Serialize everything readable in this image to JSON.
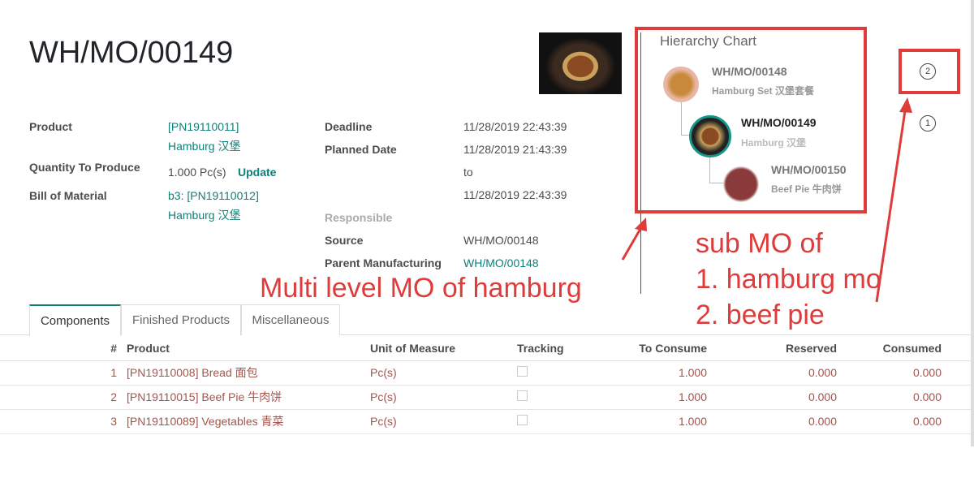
{
  "record": {
    "title": "WH/MO/00149"
  },
  "fields": {
    "product_label": "Product",
    "product_code": "[PN19110011]",
    "product_name": "Hamburg 汉堡",
    "qty_label": "Quantity To Produce",
    "qty_value": "1.000 Pc(s)",
    "update_label": "Update",
    "bom_label": "Bill of Material",
    "bom_code": "b3: [PN19110012]",
    "bom_name": "Hamburg 汉堡",
    "deadline_label": "Deadline",
    "deadline_value": "11/28/2019 22:43:39",
    "planned_label": "Planned Date",
    "planned_start": "11/28/2019 21:43:39",
    "planned_to": "to",
    "planned_end": "11/28/2019 22:43:39",
    "responsible_label": "Responsible",
    "source_label": "Source",
    "source_value": "WH/MO/00148",
    "parent_label": "Parent Manufacturing",
    "parent_value": "WH/MO/00148"
  },
  "hierarchy": {
    "title": "Hierarchy Chart",
    "nodes": [
      {
        "ref": "WH/MO/00148",
        "product": "Hamburg Set 汉堡套餐"
      },
      {
        "ref": "WH/MO/00149",
        "product": "Hamburg 汉堡"
      },
      {
        "ref": "WH/MO/00150",
        "product": "Beef Pie 牛肉饼"
      }
    ]
  },
  "status": {
    "step2": "2",
    "step1": "1"
  },
  "annotations": {
    "left": "Multi level MO of  hamburg",
    "right1": "sub MO of",
    "right2": "1. hamburg mo",
    "right3": "2. beef pie",
    "accent": "#e03b3b"
  },
  "tabs": [
    "Components",
    "Finished Products",
    "Miscellaneous"
  ],
  "table": {
    "headers": [
      "#",
      "Product",
      "Unit of Measure",
      "Tracking",
      "To Consume",
      "Reserved",
      "Consumed"
    ],
    "rows": [
      {
        "n": "1",
        "product": "[PN19110008] Bread 面包",
        "uom": "Pc(s)",
        "to_consume": "1.000",
        "reserved": "0.000",
        "consumed": "0.000"
      },
      {
        "n": "2",
        "product": "[PN19110015] Beef Pie 牛肉饼",
        "uom": "Pc(s)",
        "to_consume": "1.000",
        "reserved": "0.000",
        "consumed": "0.000"
      },
      {
        "n": "3",
        "product": "[PN19110089] Vegetables 青菜",
        "uom": "Pc(s)",
        "to_consume": "1.000",
        "reserved": "0.000",
        "consumed": "0.000"
      }
    ]
  }
}
